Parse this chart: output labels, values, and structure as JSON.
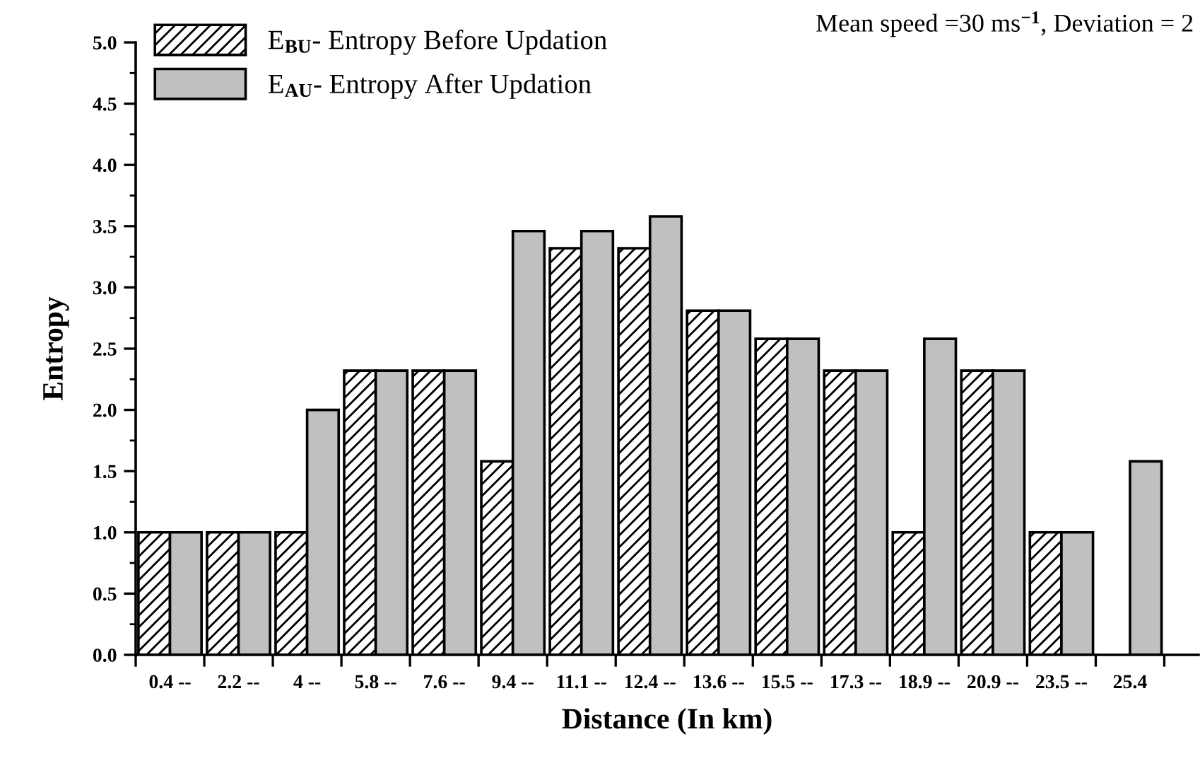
{
  "chart_data": {
    "type": "bar",
    "xlabel": "Distance (In km)",
    "ylabel": "Entropy",
    "categories": [
      "0.4 --",
      "2.2 --",
      "4 --",
      "5.8 --",
      "7.6 --",
      "9.4 --",
      "11.1 --",
      "12.4 --",
      "13.6 --",
      "15.5 --",
      "17.3 --",
      "18.9 --",
      "20.9 --",
      "23.5 --",
      "25.4"
    ],
    "series": [
      {
        "name": "E$_{BU}$- Entropy Before Updation",
        "color": "#000000",
        "values": [
          1.0,
          1.0,
          1.0,
          2.32,
          2.32,
          1.58,
          3.32,
          3.32,
          2.81,
          2.58,
          2.32,
          1.0,
          2.32,
          1.0,
          null
        ]
      },
      {
        "name": "E$_{AU}$- Entropy After Updation",
        "color": "#c0c0c0",
        "values": [
          1.0,
          1.0,
          2.0,
          2.32,
          2.32,
          3.46,
          3.46,
          3.58,
          2.81,
          2.58,
          2.32,
          2.58,
          2.32,
          1.0,
          1.58
        ]
      }
    ],
    "ylim": [
      0,
      5.0
    ],
    "yticks": [
      {
        "value": 0,
        "label": "0.0"
      },
      {
        "value": 0.5,
        "label": "0.5"
      },
      {
        "value": 1.0,
        "label": "1.0"
      },
      {
        "value": 1.5,
        "label": "1.5"
      },
      {
        "value": 2.0,
        "label": "2.0"
      },
      {
        "value": 2.5,
        "label": "2.5"
      },
      {
        "value": 3.0,
        "label": "3.0"
      },
      {
        "value": 3.5,
        "label": "3.5"
      },
      {
        "value": 4.0,
        "label": "4.0"
      },
      {
        "value": 4.5,
        "label": "4.5"
      },
      {
        "value": 5.0,
        "label": "5.0"
      }
    ],
    "annotations": [
      "Mean speed =30 ms$^{−1}$, Deviation = 2"
    ],
    "legend": "top left",
    "grid": false
  }
}
